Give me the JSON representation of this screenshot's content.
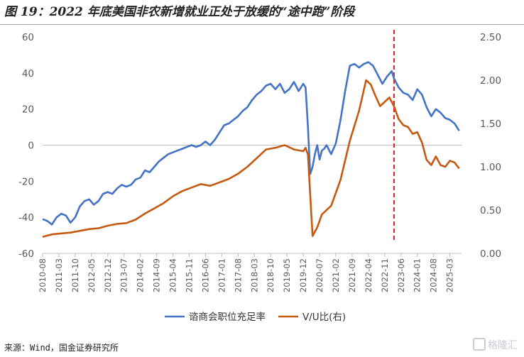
{
  "title": "图 19：2022 年底美国非农新增就业正处于放缓的“途中跑”阶段",
  "source": "来源：Wind，国金证券研究所",
  "watermark": "格隆汇",
  "chart_data": {
    "type": "line",
    "x_ticks": [
      "2010-08",
      "2011-03",
      "2011-10",
      "2012-05",
      "2012-12",
      "2013-07",
      "2014-02",
      "2014-09",
      "2015-04",
      "2015-11",
      "2016-06",
      "2017-01",
      "2017-08",
      "2018-03",
      "2018-10",
      "2019-05",
      "2019-12",
      "2020-07",
      "2021-02",
      "2021-09",
      "2022-04",
      "2022-11",
      "2023-06",
      "2024-01",
      "2024-08",
      "2025-03"
    ],
    "x_range": [
      "2010-08",
      "2025-08"
    ],
    "y_left": {
      "ticks": [
        -60,
        -40,
        -20,
        0,
        20,
        40,
        60
      ],
      "range": [
        -60,
        60
      ]
    },
    "y_right": {
      "ticks": [
        "0.00",
        "0.50",
        "1.00",
        "1.50",
        "2.00",
        "2.50"
      ],
      "range": [
        0,
        2.5
      ]
    },
    "vertical_marker": {
      "x": "2023-03",
      "color": "#e02020",
      "style": "dashed"
    },
    "legend_position": "bottom-center",
    "series": [
      {
        "name": "谘商会职位充足率",
        "axis": "left",
        "color": "#4472c4",
        "points": [
          [
            "2010-08",
            -41
          ],
          [
            "2010-10",
            -42
          ],
          [
            "2010-12",
            -44
          ],
          [
            "2011-02",
            -40
          ],
          [
            "2011-04",
            -38
          ],
          [
            "2011-06",
            -39
          ],
          [
            "2011-08",
            -43
          ],
          [
            "2011-10",
            -40
          ],
          [
            "2011-12",
            -34
          ],
          [
            "2012-02",
            -31
          ],
          [
            "2012-04",
            -30
          ],
          [
            "2012-06",
            -33
          ],
          [
            "2012-08",
            -31
          ],
          [
            "2012-10",
            -27
          ],
          [
            "2012-12",
            -26
          ],
          [
            "2013-02",
            -27
          ],
          [
            "2013-04",
            -24
          ],
          [
            "2013-06",
            -22
          ],
          [
            "2013-08",
            -23
          ],
          [
            "2013-10",
            -22
          ],
          [
            "2013-12",
            -19
          ],
          [
            "2014-02",
            -18
          ],
          [
            "2014-04",
            -14
          ],
          [
            "2014-06",
            -15
          ],
          [
            "2014-08",
            -12
          ],
          [
            "2014-10",
            -9
          ],
          [
            "2014-12",
            -7
          ],
          [
            "2015-02",
            -5
          ],
          [
            "2015-04",
            -4
          ],
          [
            "2015-06",
            -3
          ],
          [
            "2015-08",
            -2
          ],
          [
            "2015-10",
            -1
          ],
          [
            "2015-12",
            0
          ],
          [
            "2016-02",
            -1
          ],
          [
            "2016-04",
            0
          ],
          [
            "2016-06",
            2
          ],
          [
            "2016-08",
            0
          ],
          [
            "2016-10",
            3
          ],
          [
            "2016-12",
            7
          ],
          [
            "2017-02",
            11
          ],
          [
            "2017-04",
            12
          ],
          [
            "2017-06",
            14
          ],
          [
            "2017-08",
            16
          ],
          [
            "2017-10",
            19
          ],
          [
            "2017-12",
            21
          ],
          [
            "2018-02",
            25
          ],
          [
            "2018-04",
            28
          ],
          [
            "2018-06",
            30
          ],
          [
            "2018-08",
            33
          ],
          [
            "2018-10",
            34
          ],
          [
            "2018-12",
            31
          ],
          [
            "2019-02",
            34
          ],
          [
            "2019-04",
            29
          ],
          [
            "2019-06",
            31
          ],
          [
            "2019-08",
            35
          ],
          [
            "2019-10",
            30
          ],
          [
            "2019-12",
            34
          ],
          [
            "2020-01",
            32
          ],
          [
            "2020-02",
            10
          ],
          [
            "2020-03",
            -16
          ],
          [
            "2020-04",
            -12
          ],
          [
            "2020-05",
            -5
          ],
          [
            "2020-06",
            0
          ],
          [
            "2020-07",
            -8
          ],
          [
            "2020-08",
            -3
          ],
          [
            "2020-09",
            -2
          ],
          [
            "2020-10",
            0
          ],
          [
            "2020-12",
            -5
          ],
          [
            "2021-02",
            1
          ],
          [
            "2021-04",
            14
          ],
          [
            "2021-06",
            30
          ],
          [
            "2021-08",
            44
          ],
          [
            "2021-10",
            45
          ],
          [
            "2021-12",
            43
          ],
          [
            "2022-02",
            45
          ],
          [
            "2022-04",
            46
          ],
          [
            "2022-06",
            44
          ],
          [
            "2022-08",
            39
          ],
          [
            "2022-10",
            34
          ],
          [
            "2022-12",
            38
          ],
          [
            "2023-02",
            41
          ],
          [
            "2023-03",
            37
          ],
          [
            "2023-05",
            32
          ],
          [
            "2023-07",
            29
          ],
          [
            "2023-09",
            28
          ],
          [
            "2023-11",
            25
          ],
          [
            "2024-01",
            31
          ],
          [
            "2024-03",
            28
          ],
          [
            "2024-05",
            21
          ],
          [
            "2024-07",
            16
          ],
          [
            "2024-09",
            20
          ],
          [
            "2024-11",
            18
          ],
          [
            "2025-01",
            15
          ],
          [
            "2025-03",
            14
          ],
          [
            "2025-05",
            12
          ],
          [
            "2025-07",
            8
          ]
        ]
      },
      {
        "name": "V/U比(右)",
        "axis": "right",
        "color": "#c65911",
        "points": [
          [
            "2010-08",
            0.19
          ],
          [
            "2010-12",
            0.22
          ],
          [
            "2011-04",
            0.23
          ],
          [
            "2011-08",
            0.24
          ],
          [
            "2011-12",
            0.26
          ],
          [
            "2012-04",
            0.28
          ],
          [
            "2012-08",
            0.29
          ],
          [
            "2012-12",
            0.32
          ],
          [
            "2013-04",
            0.34
          ],
          [
            "2013-08",
            0.35
          ],
          [
            "2013-12",
            0.39
          ],
          [
            "2014-04",
            0.46
          ],
          [
            "2014-08",
            0.52
          ],
          [
            "2014-12",
            0.58
          ],
          [
            "2015-04",
            0.66
          ],
          [
            "2015-08",
            0.72
          ],
          [
            "2015-12",
            0.76
          ],
          [
            "2016-04",
            0.8
          ],
          [
            "2016-08",
            0.78
          ],
          [
            "2016-12",
            0.82
          ],
          [
            "2017-04",
            0.86
          ],
          [
            "2017-08",
            0.92
          ],
          [
            "2017-12",
            1.0
          ],
          [
            "2018-04",
            1.1
          ],
          [
            "2018-08",
            1.2
          ],
          [
            "2018-12",
            1.22
          ],
          [
            "2019-04",
            1.25
          ],
          [
            "2019-08",
            1.2
          ],
          [
            "2019-12",
            1.18
          ],
          [
            "2020-01",
            1.22
          ],
          [
            "2020-02",
            1.14
          ],
          [
            "2020-04",
            0.2
          ],
          [
            "2020-06",
            0.3
          ],
          [
            "2020-08",
            0.45
          ],
          [
            "2020-12",
            0.55
          ],
          [
            "2021-04",
            0.85
          ],
          [
            "2021-08",
            1.3
          ],
          [
            "2021-12",
            1.65
          ],
          [
            "2022-03",
            2.0
          ],
          [
            "2022-05",
            1.95
          ],
          [
            "2022-07",
            1.82
          ],
          [
            "2022-09",
            1.7
          ],
          [
            "2022-11",
            1.75
          ],
          [
            "2023-01",
            1.8
          ],
          [
            "2023-03",
            1.7
          ],
          [
            "2023-05",
            1.55
          ],
          [
            "2023-07",
            1.48
          ],
          [
            "2023-09",
            1.46
          ],
          [
            "2023-11",
            1.38
          ],
          [
            "2024-01",
            1.4
          ],
          [
            "2024-03",
            1.28
          ],
          [
            "2024-05",
            1.08
          ],
          [
            "2024-07",
            1.02
          ],
          [
            "2024-09",
            1.12
          ],
          [
            "2024-11",
            1.02
          ],
          [
            "2025-01",
            1.0
          ],
          [
            "2025-03",
            1.07
          ],
          [
            "2025-05",
            1.05
          ],
          [
            "2025-07",
            0.98
          ]
        ]
      }
    ]
  }
}
